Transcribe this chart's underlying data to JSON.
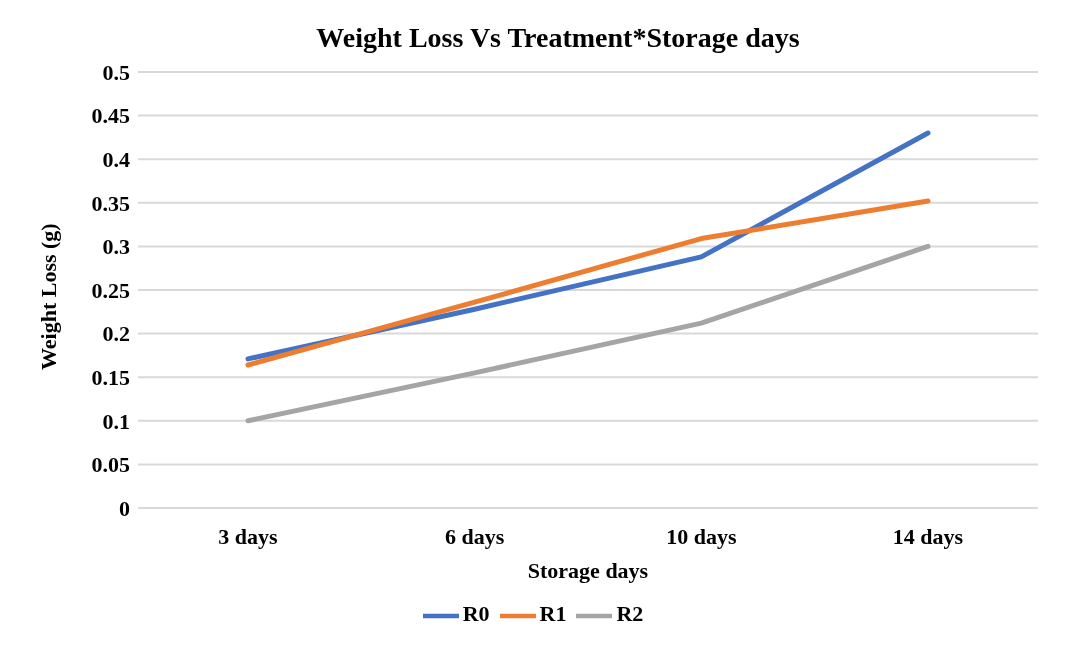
{
  "chart_data": {
    "type": "line",
    "title": "Weight Loss Vs Treatment*Storage days",
    "xlabel": "Storage days",
    "ylabel": "Weight Loss (g)",
    "categories": [
      "3 days",
      "6 days",
      "10 days",
      "14 days"
    ],
    "series": [
      {
        "name": "R0",
        "color": "#4472c4",
        "values": [
          0.171,
          0.228,
          0.288,
          0.43
        ]
      },
      {
        "name": "R1",
        "color": "#ed7d31",
        "values": [
          0.164,
          0.236,
          0.309,
          0.352
        ]
      },
      {
        "name": "R2",
        "color": "#a5a5a5",
        "values": [
          0.1,
          0.155,
          0.212,
          0.3
        ]
      }
    ],
    "ylim": [
      0,
      0.5
    ],
    "yticks": [
      0,
      0.05,
      0.1,
      0.15,
      0.2,
      0.25,
      0.3,
      0.35,
      0.4,
      0.45,
      0.5
    ],
    "grid": "y",
    "legend": "bottom",
    "marker": "none",
    "line_style": "solid"
  }
}
